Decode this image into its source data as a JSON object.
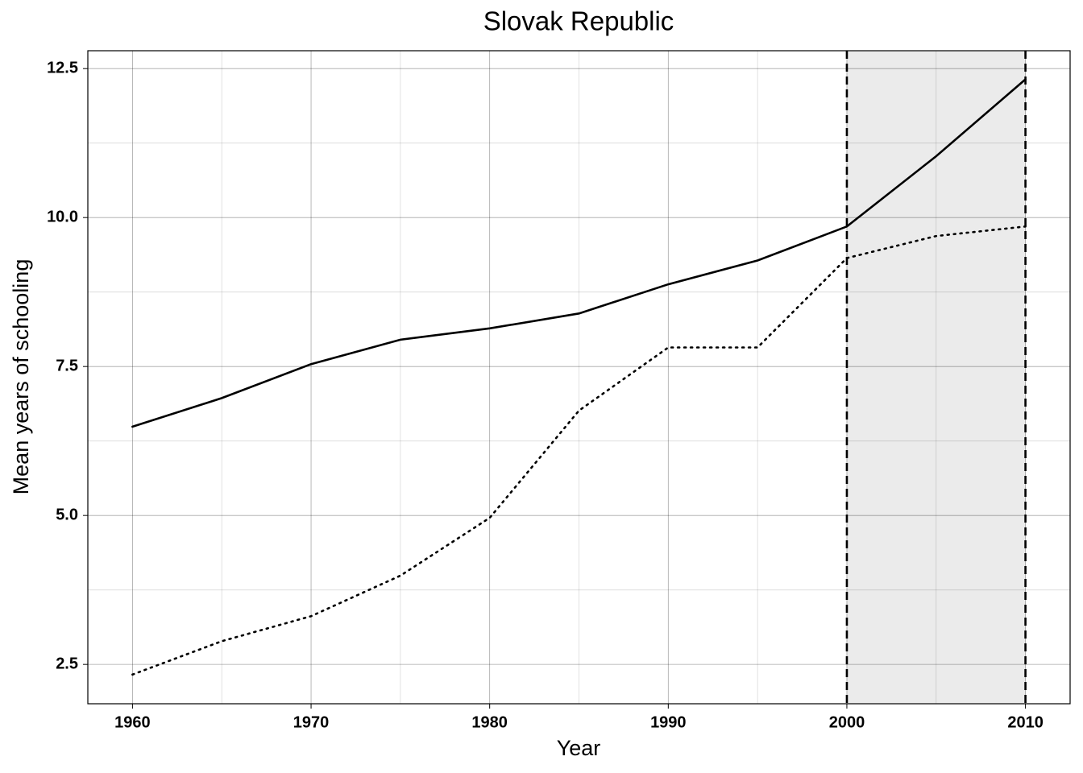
{
  "chart_data": {
    "type": "line",
    "title": "Slovak Republic",
    "xlabel": "Year",
    "ylabel": "Mean years of schooling",
    "x": [
      1960,
      1965,
      1970,
      1975,
      1980,
      1985,
      1990,
      1995,
      2000,
      2005,
      2010
    ],
    "series": [
      {
        "color": "#000000",
        "linestyle": "solid",
        "values": [
          6.49,
          6.97,
          7.54,
          7.95,
          8.14,
          8.39,
          8.88,
          9.28,
          9.85,
          11.03,
          12.32
        ]
      },
      {
        "color": "#000000",
        "linestyle": "dotted",
        "values": [
          2.33,
          2.89,
          3.31,
          3.99,
          4.96,
          6.76,
          7.82,
          7.82,
          9.32,
          9.69,
          9.85
        ]
      }
    ],
    "highlight": [
      2000,
      2010
    ],
    "xlim": [
      1957.5,
      2012.5
    ],
    "xticks": [
      1960,
      1970,
      1980,
      1990,
      2000,
      2010
    ],
    "ylim": [
      1.84,
      12.8
    ],
    "yticks": [
      2.5,
      {
        "value": 5,
        "label": "5.0"
      },
      7.5,
      {
        "value": 10,
        "label": "10.0"
      },
      12.5
    ],
    "grid": true
  }
}
